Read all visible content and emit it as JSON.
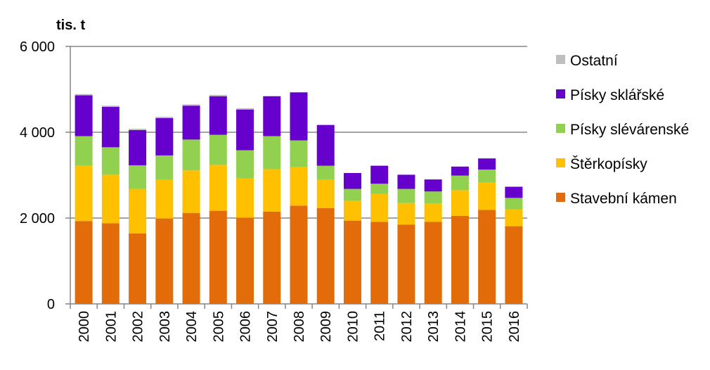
{
  "chart_data": {
    "type": "bar",
    "stacked": true,
    "unit_label": "tis. t",
    "categories": [
      "2000",
      "2001",
      "2002",
      "2003",
      "2004",
      "2005",
      "2006",
      "2007",
      "2008",
      "2009",
      "2010",
      "2011",
      "2012",
      "2013",
      "2014",
      "2015",
      "2016"
    ],
    "ylim": [
      0,
      6000
    ],
    "yticks": [
      0,
      2000,
      4000,
      6000
    ],
    "ytick_labels": [
      "0",
      "2 000",
      "4 000",
      "6 000"
    ],
    "grid": true,
    "legend_position": "right",
    "series": [
      {
        "name": "Stavební kámen",
        "color": "#E36C0A",
        "values": [
          1930,
          1880,
          1640,
          1990,
          2120,
          2170,
          2010,
          2150,
          2290,
          2230,
          1940,
          1910,
          1850,
          1910,
          2050,
          2190,
          1810
        ]
      },
      {
        "name": "Štěrkopísky",
        "color": "#FFC000",
        "values": [
          1290,
          1130,
          1040,
          900,
          990,
          1070,
          910,
          990,
          900,
          660,
          470,
          650,
          500,
          430,
          600,
          640,
          390
        ]
      },
      {
        "name": "Písky slévárenské",
        "color": "#92D050",
        "values": [
          690,
          640,
          550,
          570,
          720,
          700,
          660,
          770,
          620,
          330,
          270,
          240,
          330,
          280,
          340,
          300,
          270
        ]
      },
      {
        "name": "Písky sklářské",
        "color": "#6600CC",
        "values": [
          950,
          940,
          820,
          870,
          790,
          900,
          950,
          930,
          1120,
          950,
          370,
          420,
          330,
          280,
          210,
          260,
          260
        ]
      },
      {
        "name": "Ostatní",
        "color": "#BFBFBF",
        "values": [
          30,
          30,
          30,
          30,
          30,
          30,
          30,
          0,
          0,
          0,
          0,
          0,
          0,
          0,
          0,
          0,
          0
        ]
      }
    ]
  }
}
